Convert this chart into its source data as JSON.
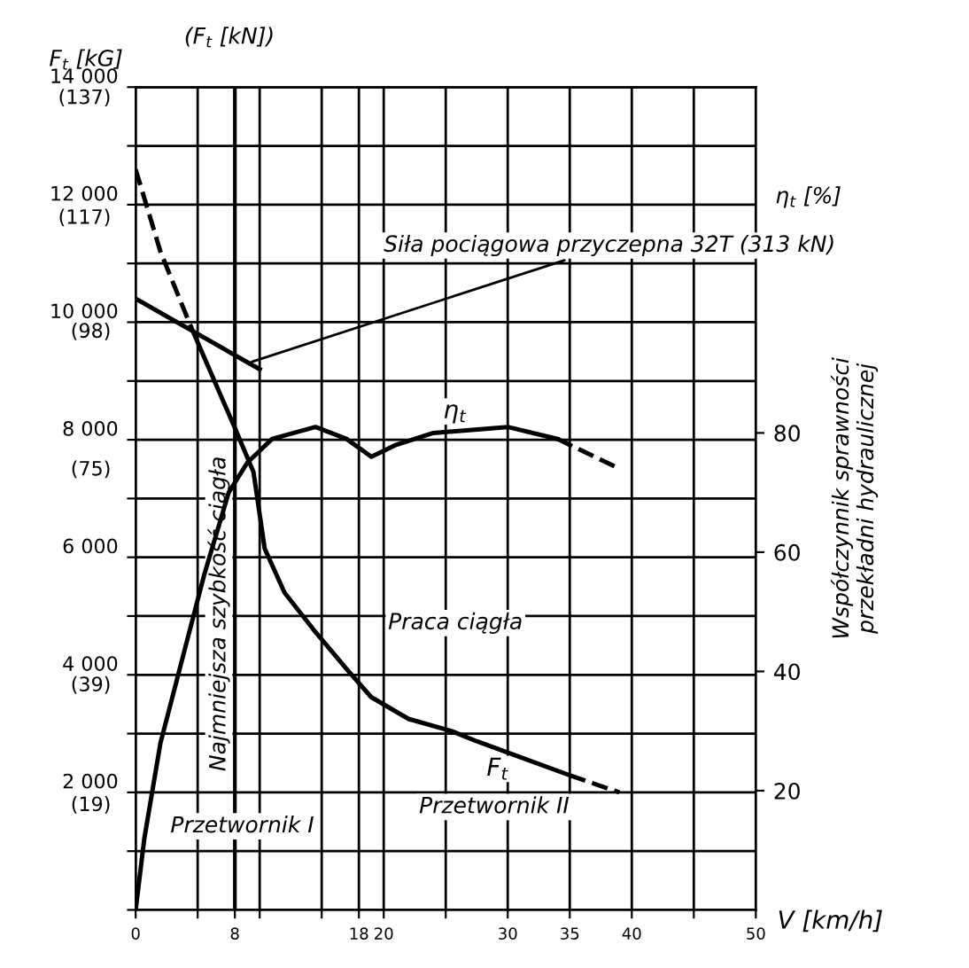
{
  "chart_data": {
    "type": "line",
    "xlabel": "V [km/h]",
    "ylabel": "F$_{t}$ [kG]",
    "y2label": "Współczynnik sprawności\nprzekładni hydraulicznej",
    "xlim": [
      0,
      50
    ],
    "xticks": [
      0,
      {
        "value": 5,
        "label": null
      },
      8,
      {
        "value": 10,
        "label": null
      },
      {
        "value": 15,
        "label": null
      },
      18,
      20,
      {
        "value": 25,
        "label": null
      },
      30,
      35,
      40,
      {
        "value": 45,
        "label": null
      },
      50
    ],
    "ylim": [
      0,
      14000
    ],
    "yticks": [
      {
        "value": 0,
        "label": null
      },
      {
        "value": 1000,
        "label": null
      },
      {
        "value": 2000,
        "label": "2 000"
      },
      {
        "value": 3000,
        "label": null
      },
      {
        "value": 4000,
        "label": "4 000"
      },
      {
        "value": 5000,
        "label": null
      },
      {
        "value": 6000,
        "label": "6 000"
      },
      {
        "value": 7000,
        "label": null
      },
      {
        "value": 8000,
        "label": "8 000"
      },
      {
        "value": 9000,
        "label": null
      },
      {
        "value": 10000,
        "label": "10 000"
      },
      {
        "value": 11000,
        "label": null
      },
      {
        "value": 12000,
        "label": "12 000"
      },
      {
        "value": 13000,
        "label": null
      },
      {
        "value": 14000,
        "label": "14 000"
      }
    ],
    "y3lim": [
      0,
      137.3
    ],
    "y3ticks": [
      {
        "value": 19,
        "label": "(19)"
      },
      {
        "value": 39,
        "label": "(39)"
      },
      {
        "value": 75,
        "label": "(75)"
      },
      {
        "value": 98,
        "label": "(98)"
      },
      {
        "value": 117,
        "label": "(117)"
      },
      {
        "value": 137,
        "label": "(137)"
      }
    ],
    "y2lim": [
      0,
      138
    ],
    "y2ticks": [
      20,
      40,
      60,
      80
    ],
    "grid": true,
    "series": [
      {
        "color": "#000000",
        "line_style": "dashed",
        "x": [
          0,
          2,
          4.5
        ],
        "values": [
          12600,
          11200,
          9900
        ]
      },
      {
        "color": "#000000",
        "x": [
          0,
          10
        ],
        "values": [
          10400,
          9200
        ]
      },
      {
        "name": "F$_{t}$",
        "color": "#000000",
        "x": [
          4.5,
          8,
          9.5,
          10.4,
          12,
          14.3,
          17,
          19,
          22,
          25.5,
          27.5,
          31,
          35
        ],
        "values": [
          9900,
          8200,
          7450,
          6150,
          5400,
          4780,
          4100,
          3620,
          3250,
          3040,
          2870,
          2600,
          2290
        ]
      },
      {
        "color": "#000000",
        "line_style": "dashed",
        "x": [
          35,
          39
        ],
        "values": [
          2290,
          2000
        ]
      },
      {
        "name": "η$_{t}$",
        "color": "#000000",
        "axis": "y2",
        "x": [
          0,
          0.7,
          2,
          3.5,
          5.5,
          7.5,
          9,
          11,
          14.5,
          17,
          19,
          21,
          24,
          30,
          34
        ],
        "values": [
          0,
          12,
          28,
          40,
          56,
          70,
          75,
          79,
          81,
          79,
          76,
          78,
          80,
          81,
          79
        ]
      },
      {
        "color": "#000000",
        "axis": "y2",
        "line_style": "dashed",
        "x": [
          34,
          39
        ],
        "values": [
          79,
          74
        ]
      }
    ],
    "ref_lines": [
      {
        "axis": "x",
        "value": 8,
        "label": "Najmniejsza szybkość ciągła"
      }
    ],
    "annotations": [
      {
        "text": "Siła pociągowa przyczepna 32T (313 kN)",
        "x": 9,
        "y": 9300
      },
      "(F$_{t}$ [kN])",
      "η$_{t}$ [%]",
      "Praca ciągła",
      "Przetwornik I",
      "Przetwornik II"
    ]
  }
}
